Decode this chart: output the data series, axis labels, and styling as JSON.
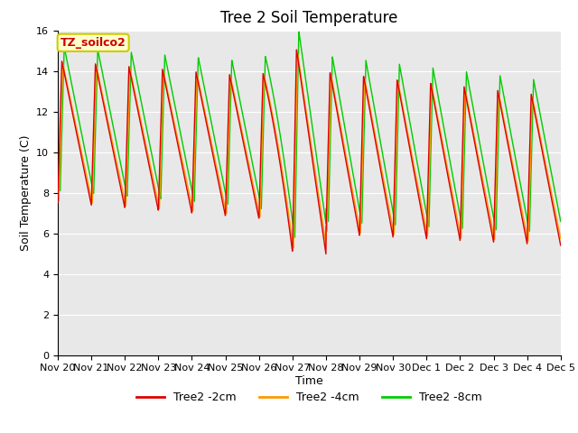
{
  "title": "Tree 2 Soil Temperature",
  "xlabel": "Time",
  "ylabel": "Soil Temperature (C)",
  "annotation": "TZ_soilco2",
  "ylim": [
    0,
    16
  ],
  "yticks": [
    0,
    2,
    4,
    6,
    8,
    10,
    12,
    14,
    16
  ],
  "x_labels": [
    "Nov 20",
    "Nov 21",
    "Nov 22",
    "Nov 23",
    "Nov 24",
    "Nov 25",
    "Nov 26",
    "Nov 27",
    "Nov 28",
    "Nov 29",
    "Nov 30",
    "Dec 1",
    "Dec 2",
    "Dec 3",
    "Dec 4",
    "Dec 5"
  ],
  "colors": {
    "line_2cm": "#dd0000",
    "line_4cm": "#ff9900",
    "line_8cm": "#00cc00",
    "background_inner": "#e8e8e8",
    "background_outer": "#ffffff",
    "grid": "#ffffff",
    "annotation_bg": "#ffffcc",
    "annotation_border": "#cccc00",
    "annotation_text": "#cc0000"
  },
  "title_fontsize": 12,
  "axis_label_fontsize": 9,
  "tick_fontsize": 8
}
